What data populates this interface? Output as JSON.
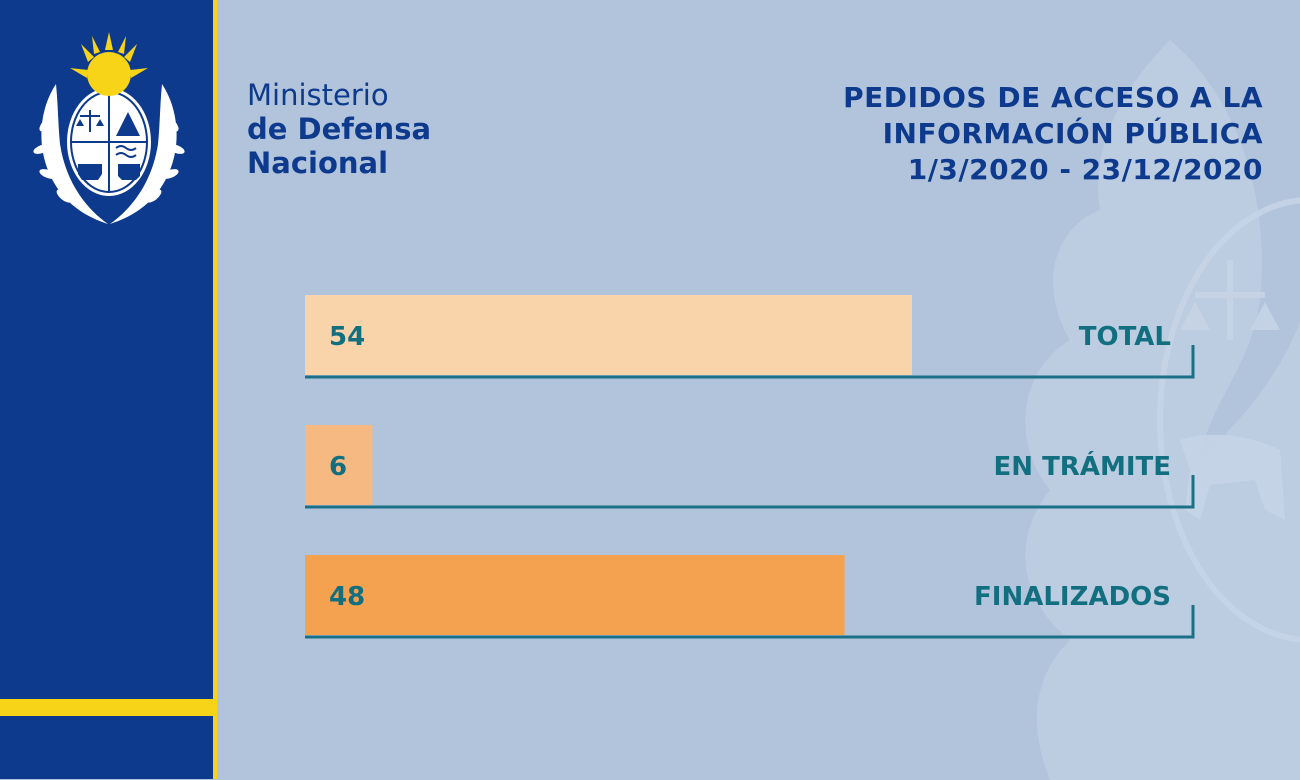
{
  "header": {
    "ministry_line1": "Ministerio",
    "ministry_line2": "de Defensa",
    "ministry_line3": "Nacional",
    "title_line1": "PEDIDOS DE ACCESO A LA",
    "title_line2": "INFORMACIÓN PÚBLICA",
    "title_line3": "1/3/2020 - 23/12/2020"
  },
  "colors": {
    "background": "#b2c4dc",
    "sidebar": "#0d3a8c",
    "stripe": "#f7d417",
    "label_text": "#126f80",
    "axis_line": "#1a7086"
  },
  "icons": {
    "coat": "uruguay-coat-of-arms-icon",
    "watermark": "coat-of-arms-watermark-icon"
  },
  "chart_data": {
    "type": "bar",
    "orientation": "horizontal",
    "title": "PEDIDOS DE ACCESO A LA INFORMACIÓN PÚBLICA 1/3/2020 - 23/12/2020",
    "categories": [
      "TOTAL",
      "EN TRÁMITE",
      "FINALIZADOS"
    ],
    "values": [
      54,
      6,
      48
    ],
    "bar_colors": [
      "#f9d3aa",
      "#f6b981",
      "#f4a250"
    ],
    "xlim": [
      0,
      79
    ],
    "grid": false,
    "legend": "none"
  }
}
